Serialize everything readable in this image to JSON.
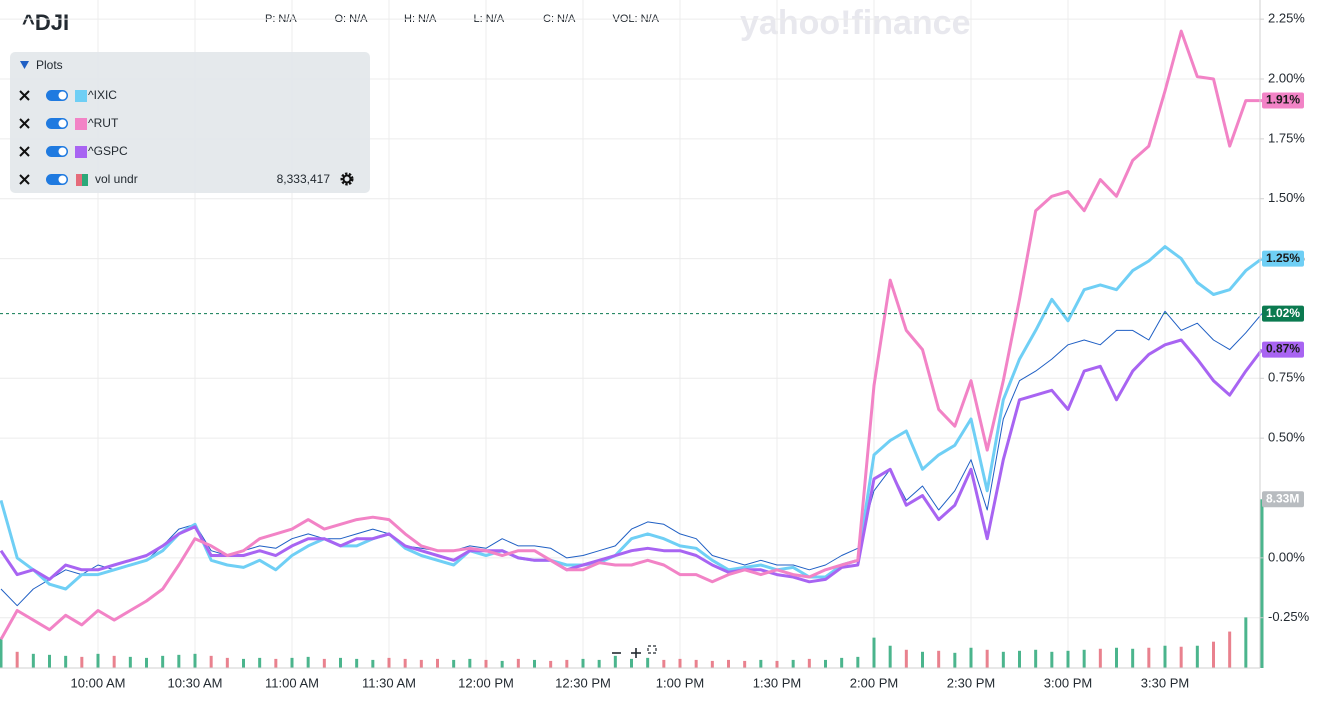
{
  "header": {
    "symbol": "^DJI",
    "watermark": "yahoo!finance",
    "stats": [
      {
        "label": "P:",
        "value": "N/A"
      },
      {
        "label": "O:",
        "value": "N/A"
      },
      {
        "label": "H:",
        "value": "N/A"
      },
      {
        "label": "L:",
        "value": "N/A"
      },
      {
        "label": "C:",
        "value": "N/A"
      },
      {
        "label": "VOL:",
        "value": "N/A"
      }
    ]
  },
  "plots_panel": {
    "title": "Plots"
  },
  "chart_data": {
    "type": "line",
    "categories": [
      null,
      null,
      null,
      null,
      null,
      null,
      "10:00 AM",
      null,
      null,
      null,
      null,
      null,
      "10:30 AM",
      null,
      null,
      null,
      null,
      null,
      "11:00 AM",
      null,
      null,
      null,
      null,
      null,
      "11:30 AM",
      null,
      null,
      null,
      null,
      null,
      "12:00 PM",
      null,
      null,
      null,
      null,
      null,
      "12:30 PM",
      null,
      null,
      null,
      null,
      null,
      "1:00 PM",
      null,
      null,
      null,
      null,
      null,
      "1:30 PM",
      null,
      null,
      null,
      null,
      null,
      "2:00 PM",
      null,
      null,
      null,
      null,
      null,
      "2:30 PM",
      null,
      null,
      null,
      null,
      null,
      "3:00 PM",
      null,
      null,
      null,
      null,
      null,
      "3:30 PM",
      null,
      null,
      null,
      null,
      null,
      null
    ],
    "ylim": [
      -0.46,
      2.33
    ],
    "yticks": [
      {
        "value": 2.25,
        "label": "2.25%"
      },
      {
        "value": 2.0,
        "label": "2.00%"
      },
      {
        "value": 1.75,
        "label": "1.75%"
      },
      {
        "value": 1.5,
        "label": "1.50%"
      },
      {
        "value": 1.25,
        "label": "1.25%"
      },
      {
        "value": 0.75,
        "label": "0.75%"
      },
      {
        "value": 0.5,
        "label": "0.50%"
      },
      {
        "value": 0.0,
        "label": "0.00%"
      },
      {
        "value": -0.25,
        "label": "-0.25%"
      }
    ],
    "grid": true,
    "series": [
      {
        "name": "^IXIC",
        "color": "#6fcff5",
        "line_width": 3,
        "label_background": "#6fcff5",
        "last_value_label": "1.25%",
        "values": [
          0.24,
          0,
          -0.05,
          -0.11,
          -0.13,
          -0.07,
          -0.07,
          -0.05,
          -0.03,
          -0.01,
          0.03,
          0.1,
          0.14,
          -0.01,
          -0.03,
          -0.04,
          -0.01,
          -0.05,
          0.01,
          0.05,
          0.08,
          0.05,
          0.05,
          0.08,
          0.1,
          0.04,
          0.01,
          -0.01,
          -0.03,
          0.03,
          0.01,
          0.03,
          0,
          -0.01,
          -0.01,
          -0.03,
          -0.03,
          -0.02,
          0.01,
          0.08,
          0.1,
          0.08,
          0.05,
          0.04,
          -0.01,
          -0.05,
          -0.04,
          -0.03,
          -0.05,
          -0.04,
          -0.08,
          -0.08,
          -0.03,
          -0.01,
          0.43,
          0.49,
          0.53,
          0.37,
          0.43,
          0.47,
          0.58,
          0.28,
          0.66,
          0.83,
          0.95,
          1.08,
          0.99,
          1.12,
          1.14,
          1.12,
          1.2,
          1.24,
          1.3,
          1.25,
          1.15,
          1.1,
          1.12,
          1.2,
          1.25
        ]
      },
      {
        "name": "^RUT",
        "color": "#f283c6",
        "line_width": 3,
        "label_background": "#f283c6",
        "last_value_label": "1.91%",
        "values": [
          -0.34,
          -0.22,
          -0.26,
          -0.3,
          -0.24,
          -0.28,
          -0.22,
          -0.26,
          -0.22,
          -0.18,
          -0.13,
          -0.03,
          0.08,
          0.05,
          0.01,
          0.03,
          0.08,
          0.1,
          0.12,
          0.16,
          0.12,
          0.14,
          0.16,
          0.17,
          0.16,
          0.1,
          0.05,
          0.03,
          0.03,
          0.04,
          0.03,
          0.01,
          0.03,
          0.03,
          -0.01,
          -0.05,
          -0.05,
          -0.02,
          -0.03,
          -0.03,
          -0.01,
          -0.03,
          -0.07,
          -0.07,
          -0.1,
          -0.07,
          -0.05,
          -0.07,
          -0.05,
          -0.07,
          -0.08,
          -0.05,
          -0.03,
          -0.01,
          0.72,
          1.16,
          0.95,
          0.87,
          0.62,
          0.55,
          0.74,
          0.45,
          0.74,
          1.08,
          1.45,
          1.51,
          1.53,
          1.45,
          1.58,
          1.51,
          1.66,
          1.72,
          1.95,
          2.2,
          2.01,
          2.0,
          1.72,
          1.91,
          1.91
        ]
      },
      {
        "name": "^GSPC",
        "color": "#a864f2",
        "line_width": 3,
        "label_background": "#a864f2",
        "last_value_label": "0.87%",
        "values": [
          0.03,
          -0.07,
          -0.05,
          -0.09,
          -0.03,
          -0.05,
          -0.05,
          -0.03,
          -0.01,
          0.01,
          0.05,
          0.1,
          0.13,
          0.01,
          0.01,
          0.01,
          0.03,
          0.01,
          0.05,
          0.08,
          0.08,
          0.05,
          0.08,
          0.08,
          0.1,
          0.05,
          0.03,
          0.01,
          -0.01,
          0.03,
          0.03,
          0.03,
          0,
          -0.01,
          -0.01,
          -0.05,
          -0.03,
          -0.01,
          0.01,
          0.03,
          0.04,
          0.03,
          0.03,
          0.01,
          -0.03,
          -0.06,
          -0.05,
          -0.05,
          -0.07,
          -0.08,
          -0.1,
          -0.09,
          -0.04,
          -0.03,
          0.33,
          0.37,
          0.22,
          0.26,
          0.16,
          0.22,
          0.37,
          0.08,
          0.41,
          0.66,
          0.68,
          0.7,
          0.62,
          0.78,
          0.8,
          0.66,
          0.78,
          0.85,
          0.89,
          0.91,
          0.83,
          0.74,
          0.68,
          0.78,
          0.87
        ]
      },
      {
        "color": "#1f5fc4",
        "line_width": 1,
        "label_background": "#0b7a50",
        "last_value_label": "1.02%",
        "values": [
          -0.13,
          -0.2,
          -0.13,
          -0.09,
          -0.05,
          -0.07,
          -0.03,
          -0.05,
          -0.03,
          -0.01,
          0.05,
          0.12,
          0.14,
          0.03,
          0.01,
          0.03,
          0.05,
          0.04,
          0.08,
          0.1,
          0.08,
          0.08,
          0.1,
          0.12,
          0.1,
          0.05,
          0.04,
          0.03,
          0.03,
          0.05,
          0.04,
          0.08,
          0.05,
          0.05,
          0.04,
          0,
          0.01,
          0.03,
          0.05,
          0.12,
          0.15,
          0.14,
          0.1,
          0.08,
          0.01,
          -0.01,
          -0.03,
          -0.01,
          -0.03,
          -0.03,
          -0.05,
          -0.03,
          0.01,
          0.04,
          0.28,
          0.37,
          0.24,
          0.3,
          0.2,
          0.28,
          0.41,
          0.2,
          0.58,
          0.74,
          0.78,
          0.83,
          0.89,
          0.91,
          0.89,
          0.95,
          0.95,
          0.91,
          1.03,
          0.95,
          0.98,
          0.91,
          0.87,
          0.94,
          1.02
        ]
      }
    ],
    "volume": {
      "name": "vol undr",
      "legend_value_label": "8,333,417",
      "last_label": "8.33M",
      "ylim": [
        0,
        33000000
      ],
      "up_color": "#2ca879",
      "down_color": "#e56b7a",
      "label_background": "#b8bcc0",
      "values": [
        1500000,
        800000,
        700000,
        650000,
        600000,
        550000,
        700000,
        600000,
        550000,
        500000,
        600000,
        650000,
        700000,
        600000,
        500000,
        450000,
        500000,
        450000,
        500000,
        550000,
        450000,
        500000,
        450000,
        400000,
        500000,
        450000,
        400000,
        450000,
        400000,
        450000,
        400000,
        350000,
        450000,
        400000,
        350000,
        400000,
        450000,
        400000,
        600000,
        450000,
        500000,
        400000,
        450000,
        400000,
        350000,
        400000,
        350000,
        400000,
        350000,
        400000,
        450000,
        400000,
        500000,
        550000,
        1500000,
        1100000,
        900000,
        800000,
        850000,
        750000,
        1000000,
        900000,
        800000,
        850000,
        900000,
        800000,
        850000,
        900000,
        950000,
        1000000,
        950000,
        1000000,
        1100000,
        1050000,
        1100000,
        1300000,
        1800000,
        2500000,
        8333417
      ]
    }
  }
}
